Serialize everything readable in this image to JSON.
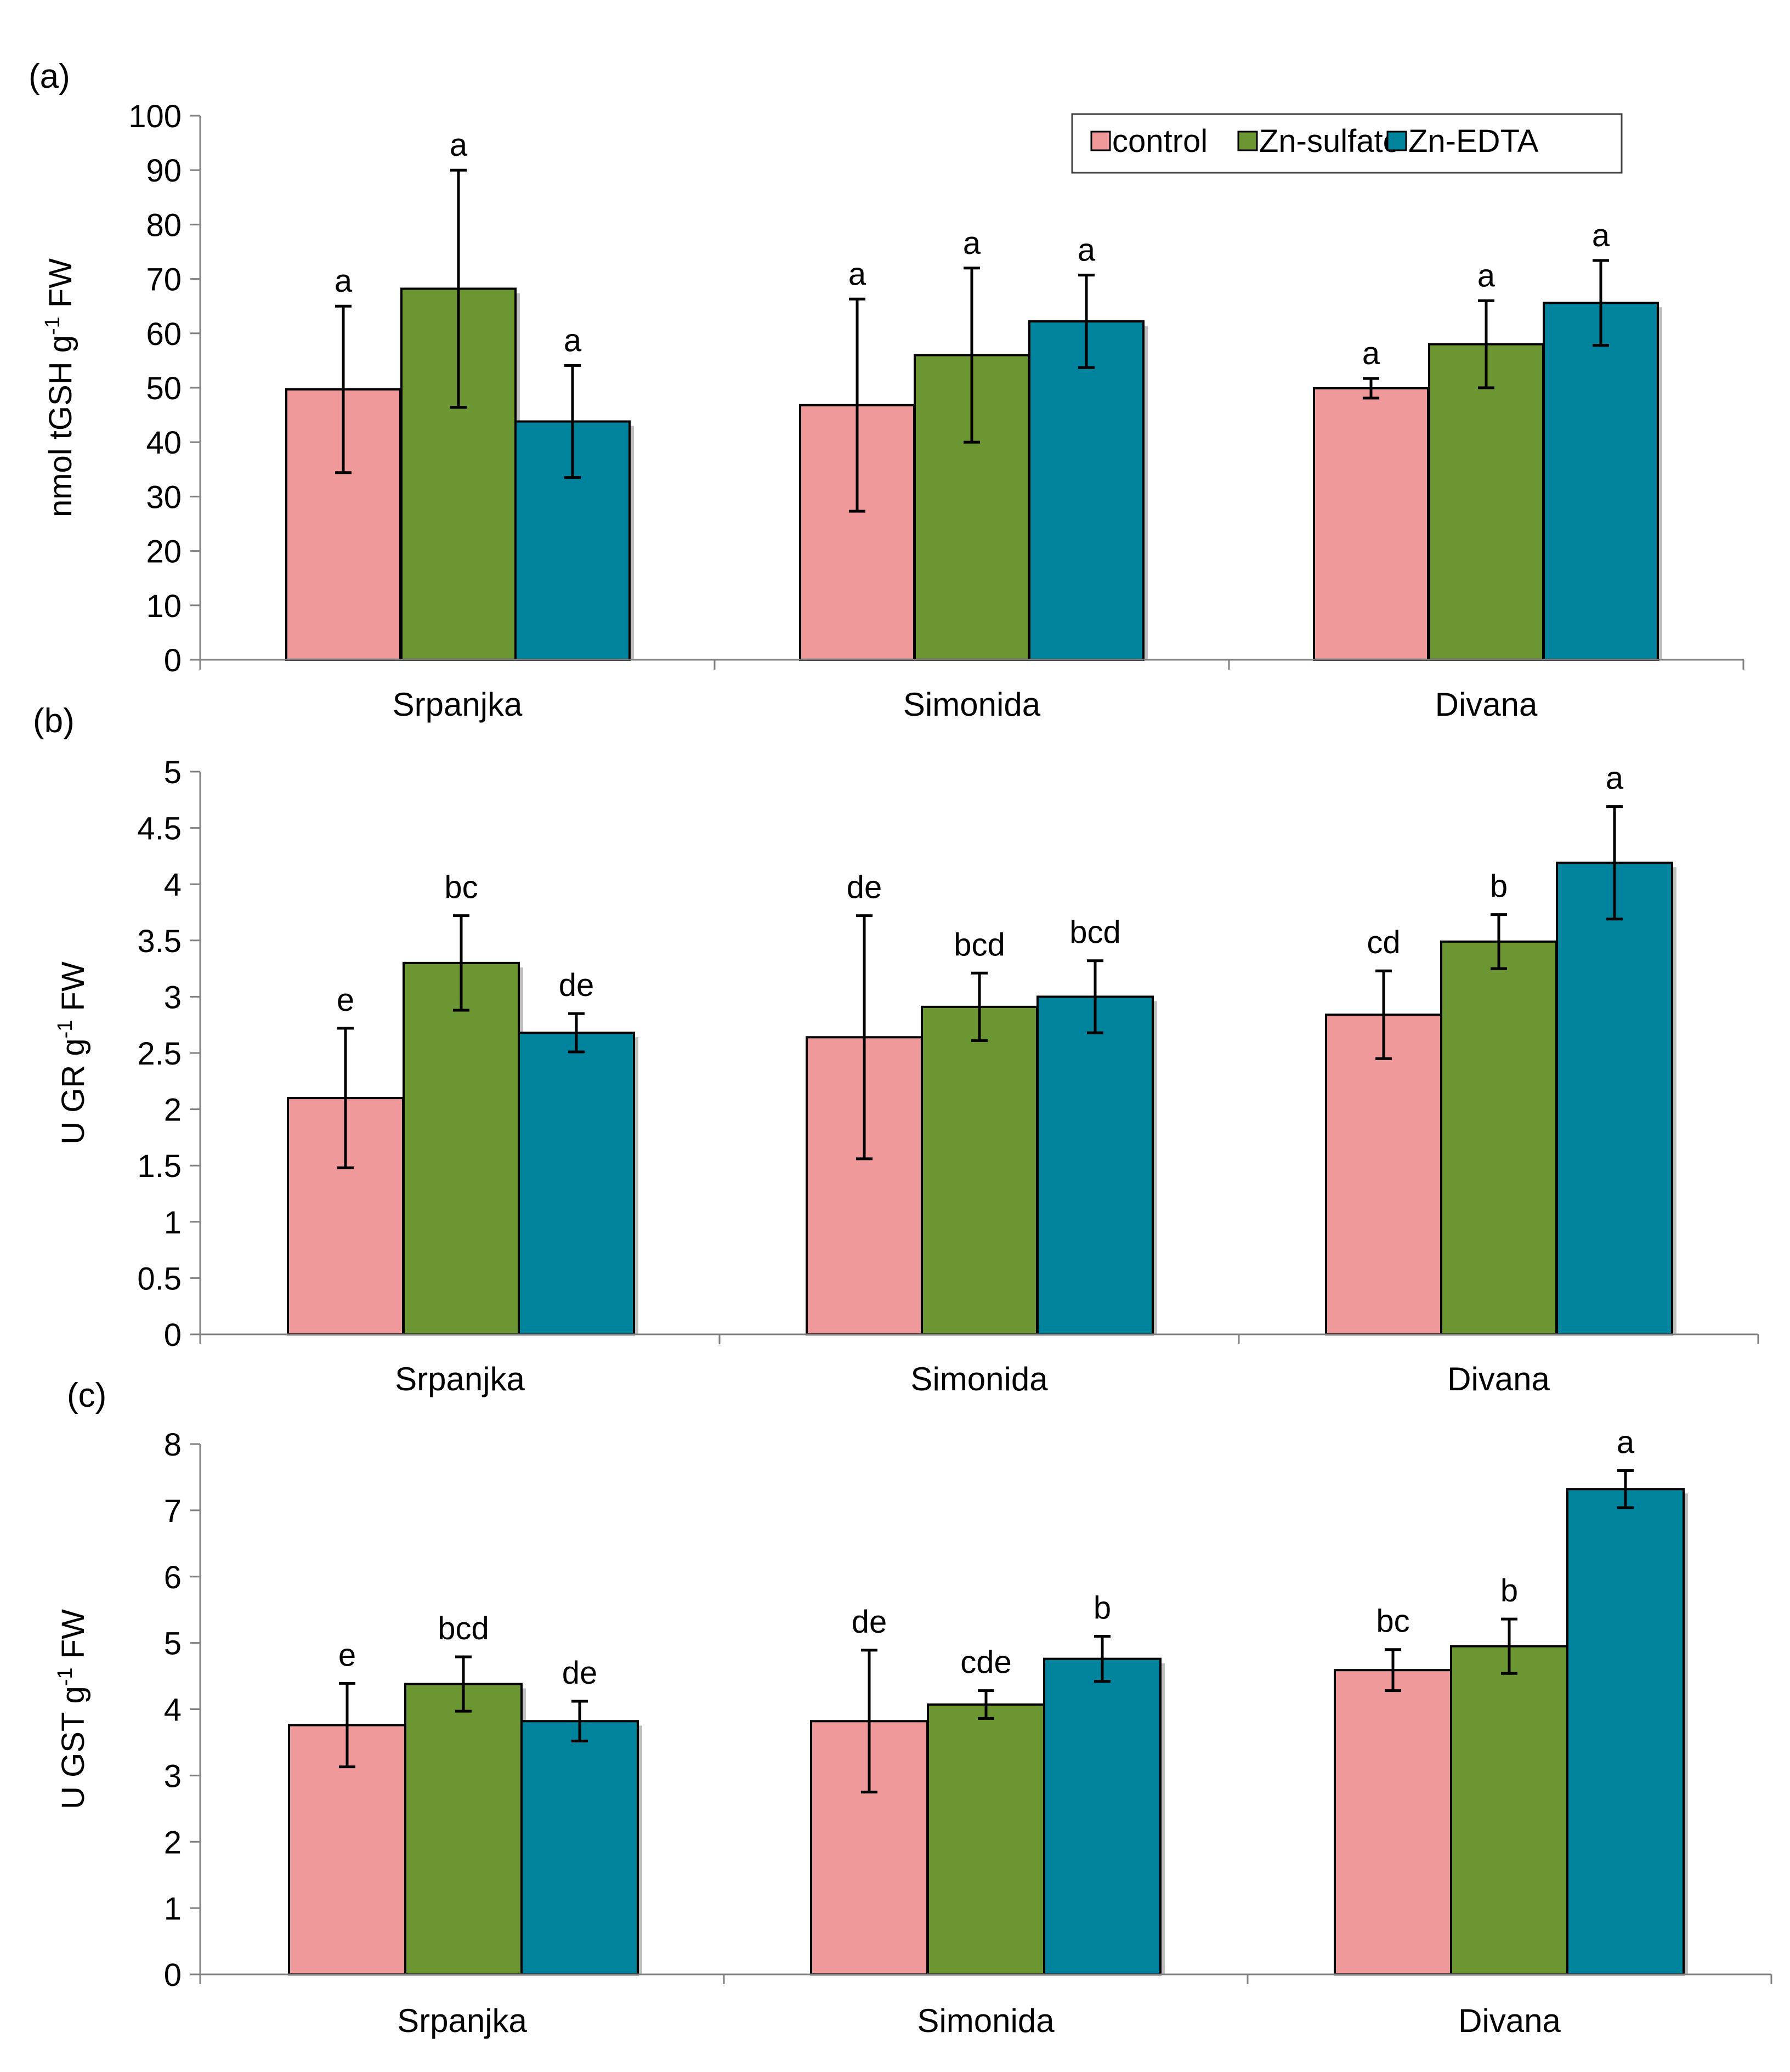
{
  "legend": {
    "entries": [
      {
        "label": "control",
        "color": "#f0999a"
      },
      {
        "label": "Zn-sulfate",
        "color": "#6b9632"
      },
      {
        "label": "Zn-EDTA",
        "color": "#00839c"
      }
    ]
  },
  "chart_data": [
    {
      "type": "bar",
      "panel_label": "(a)",
      "categories": [
        "Srpanjka",
        "Simonida",
        "Divana"
      ],
      "ylabel_main": "nmol tGSH g",
      "ylabel_sup": "-1",
      "ylabel_tail": " FW",
      "ylim": [
        0,
        100
      ],
      "yticks": [
        0,
        10,
        20,
        30,
        40,
        50,
        60,
        70,
        80,
        90,
        100
      ],
      "series": [
        {
          "name": "control",
          "color": "#f0999a",
          "values": [
            49.7,
            46.8,
            49.9
          ],
          "errors": [
            15.3,
            19.5,
            1.8
          ],
          "letters": [
            "a",
            "a",
            "a"
          ]
        },
        {
          "name": "Zn-sulfate",
          "color": "#6b9632",
          "values": [
            68.2,
            56.0,
            58.0
          ],
          "errors": [
            21.8,
            16.0,
            8.0
          ],
          "letters": [
            "a",
            "a",
            "a"
          ]
        },
        {
          "name": "Zn-EDTA",
          "color": "#00839c",
          "values": [
            43.8,
            62.2,
            65.6
          ],
          "errors": [
            10.3,
            8.5,
            7.8
          ],
          "letters": [
            "a",
            "a",
            "a"
          ]
        }
      ]
    },
    {
      "type": "bar",
      "panel_label": "(b)",
      "categories": [
        "Srpanjka",
        "Simonida",
        "Divana"
      ],
      "ylabel_main": "U GR g",
      "ylabel_sup": "-1",
      "ylabel_tail": " FW",
      "ylim": [
        0,
        5
      ],
      "yticks": [
        0,
        0.5,
        1,
        1.5,
        2,
        2.5,
        3,
        3.5,
        4,
        4.5,
        5
      ],
      "series": [
        {
          "name": "control",
          "color": "#f0999a",
          "values": [
            2.1,
            2.64,
            2.84
          ],
          "errors": [
            0.62,
            1.08,
            0.39
          ],
          "letters": [
            "e",
            "de",
            "cd"
          ]
        },
        {
          "name": "Zn-sulfate",
          "color": "#6b9632",
          "values": [
            3.3,
            2.91,
            3.49
          ],
          "errors": [
            0.42,
            0.3,
            0.24
          ],
          "letters": [
            "bc",
            "bcd",
            "b"
          ]
        },
        {
          "name": "Zn-EDTA",
          "color": "#00839c",
          "values": [
            2.68,
            3.0,
            4.19
          ],
          "errors": [
            0.17,
            0.32,
            0.5
          ],
          "letters": [
            "de",
            "bcd",
            "a"
          ]
        }
      ]
    },
    {
      "type": "bar",
      "panel_label": "(c)",
      "categories": [
        "Srpanjka",
        "Simonida",
        "Divana"
      ],
      "ylabel_main": "U GST g",
      "ylabel_sup": "-1",
      "ylabel_tail": " FW",
      "ylim": [
        0,
        8
      ],
      "yticks": [
        0,
        1,
        2,
        3,
        4,
        5,
        6,
        7,
        8
      ],
      "series": [
        {
          "name": "control",
          "color": "#f0999a",
          "values": [
            3.76,
            3.82,
            4.59
          ],
          "errors": [
            0.63,
            1.07,
            0.31
          ],
          "letters": [
            "e",
            "de",
            "bc"
          ]
        },
        {
          "name": "Zn-sulfate",
          "color": "#6b9632",
          "values": [
            4.38,
            4.07,
            4.95
          ],
          "errors": [
            0.41,
            0.21,
            0.41
          ],
          "letters": [
            "bcd",
            "cde",
            "b"
          ]
        },
        {
          "name": "Zn-EDTA",
          "color": "#00839c",
          "values": [
            3.82,
            4.76,
            7.32
          ],
          "errors": [
            0.3,
            0.34,
            0.28
          ],
          "letters": [
            "de",
            "b",
            "a"
          ]
        }
      ]
    }
  ]
}
